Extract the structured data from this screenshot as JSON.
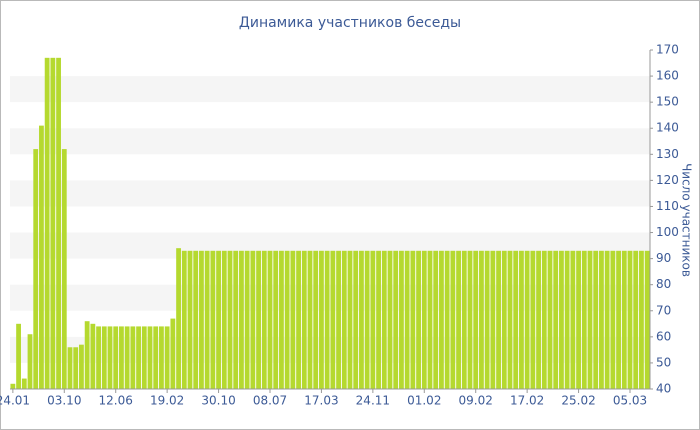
{
  "chart_data": {
    "type": "bar",
    "title": "Динамика участников беседы",
    "y_label": "Число участников",
    "categories": [
      "24.01",
      null,
      null,
      null,
      null,
      null,
      null,
      null,
      null,
      "03.10",
      null,
      null,
      null,
      null,
      null,
      null,
      null,
      null,
      "12.06",
      null,
      null,
      null,
      null,
      null,
      null,
      null,
      null,
      "19.02",
      null,
      null,
      null,
      null,
      null,
      null,
      null,
      null,
      "30.10",
      null,
      null,
      null,
      null,
      null,
      null,
      null,
      null,
      "08.07",
      null,
      null,
      null,
      null,
      null,
      null,
      null,
      null,
      "17.03",
      null,
      null,
      null,
      null,
      null,
      null,
      null,
      null,
      "24.11",
      null,
      null,
      null,
      null,
      null,
      null,
      null,
      null,
      "01.02",
      null,
      null,
      null,
      null,
      null,
      null,
      null,
      null,
      "09.02",
      null,
      null,
      null,
      null,
      null,
      null,
      null,
      null,
      "17.02",
      null,
      null,
      null,
      null,
      null,
      null,
      null,
      null,
      "25.02",
      null,
      null,
      null,
      null,
      null,
      null,
      null,
      null,
      "05.03",
      null,
      null,
      null
    ],
    "values": [
      42,
      65,
      44,
      61,
      132,
      141,
      167,
      167,
      167,
      132,
      56,
      56,
      57,
      66,
      65,
      64,
      64,
      64,
      64,
      64,
      64,
      64,
      64,
      64,
      64,
      64,
      64,
      64,
      67,
      94,
      93,
      93,
      93,
      93,
      93,
      93,
      93,
      93,
      93,
      93,
      93,
      93,
      93,
      93,
      93,
      93,
      93,
      93,
      93,
      93,
      93,
      93,
      93,
      93,
      93,
      93,
      93,
      93,
      93,
      93,
      93,
      93,
      93,
      93,
      93,
      93,
      93,
      93,
      93,
      93,
      93,
      93,
      93,
      93,
      93,
      93,
      93,
      93,
      93,
      93,
      93,
      93,
      93,
      93,
      93,
      93,
      93,
      93,
      93,
      93,
      93,
      93,
      93,
      93,
      93,
      93,
      93,
      93,
      93,
      93,
      93,
      93,
      93,
      93,
      93,
      93,
      93,
      93,
      93,
      93,
      93,
      93
    ],
    "color": "#b5d92f",
    "ylim": [
      40,
      170
    ],
    "yticks": [
      40,
      50,
      60,
      70,
      80,
      90,
      100,
      110,
      120,
      130,
      140,
      150,
      160,
      170
    ],
    "grid": "bands",
    "y_axis_side": "right"
  }
}
